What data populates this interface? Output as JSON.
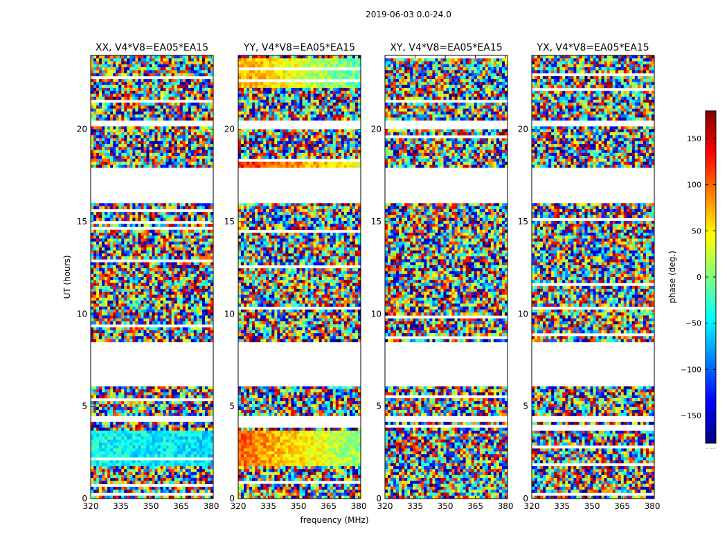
{
  "suptitle": "2019-06-03 0.0-24.0",
  "chart_data": {
    "type": "heatmap",
    "xlabel": "frequency (MHz)",
    "ylabel": "UT (hours)",
    "xlim": [
      320,
      381
    ],
    "ylim": [
      0,
      24
    ],
    "xticks": [
      320,
      335,
      350,
      365,
      380
    ],
    "yticks": [
      0,
      5,
      10,
      15,
      20
    ],
    "colorbar": {
      "label": "phase (deg.)",
      "range": [
        -180,
        180
      ],
      "ticks": [
        -150,
        -100,
        -50,
        0,
        50,
        100,
        150
      ],
      "tick_labels": [
        "−150",
        "−100",
        "−50",
        "0",
        "50",
        "100",
        "150"
      ],
      "colormap": "jet",
      "bottom_note": "......"
    },
    "data_gaps_hours": [
      [
        6.05,
        8.45
      ],
      [
        16.0,
        17.9
      ],
      [
        20.2,
        20.45
      ],
      [
        4.2,
        4.4
      ]
    ],
    "panels": [
      {
        "title": "XX, V4*V8=EA05*EA15",
        "bias_segments": [
          [
            1.7,
            3.7,
            -40
          ]
        ]
      },
      {
        "title": "YY, V4*V8=EA05*EA15",
        "bias_segments": [
          [
            1.7,
            3.7,
            100
          ],
          [
            22.3,
            23.9,
            80
          ],
          [
            18.0,
            18.4,
            130
          ]
        ]
      },
      {
        "title": "XY, V4*V8=EA05*EA15",
        "bias_segments": []
      },
      {
        "title": "YX, V4*V8=EA05*EA15",
        "bias_segments": []
      }
    ]
  }
}
